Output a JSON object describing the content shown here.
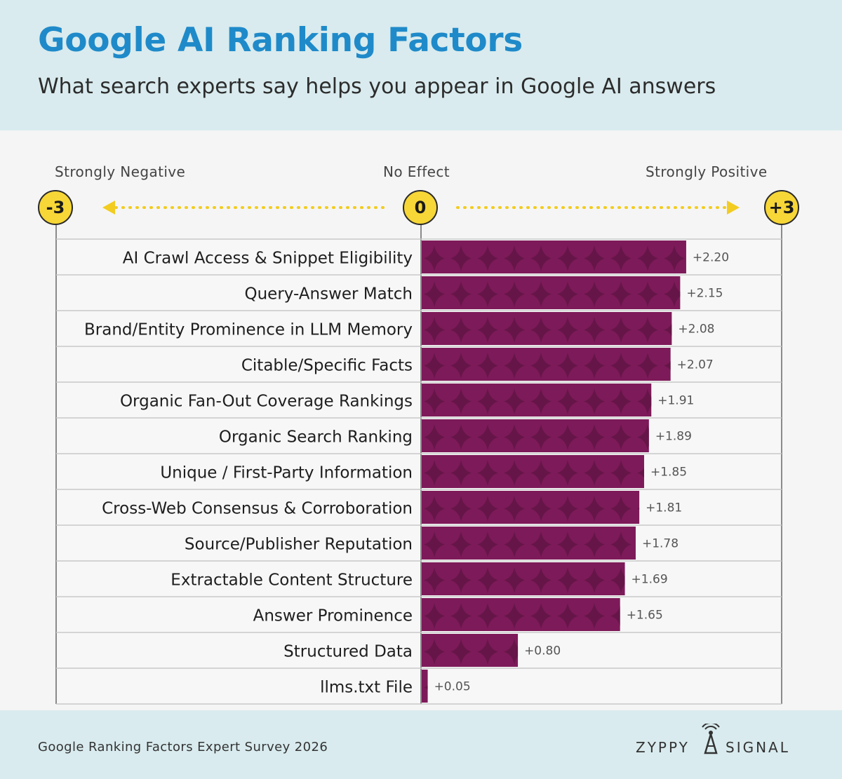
{
  "header": {
    "title": "Google AI Ranking Factors",
    "subtitle": "What search experts say helps you appear in Google AI answers"
  },
  "scale": {
    "left_label": "Strongly Negative",
    "center_label": "No Effect",
    "right_label": "Strongly Positive",
    "min_badge": "-3",
    "zero_badge": "0",
    "max_badge": "+3"
  },
  "footer": {
    "source": "Google Ranking Factors Expert Survey 2026",
    "brand_left": "ZYPPY",
    "brand_right": "SIGNAL"
  },
  "colors": {
    "title": "#1f8ac9",
    "bar": "#7d1a59",
    "badge": "#f7d637",
    "header_bg": "#d9ebee"
  },
  "chart_data": {
    "type": "bar",
    "orientation": "horizontal",
    "xlim": [
      -3,
      3
    ],
    "categories": [
      "AI Crawl Access & Snippet Eligibility",
      "Query-Answer Match",
      "Brand/Entity Prominence in LLM Memory",
      "Citable/Specific Facts",
      "Organic Fan-Out Coverage Rankings",
      "Organic Search Ranking",
      "Unique / First-Party Information",
      "Cross-Web Consensus & Corroboration",
      "Source/Publisher Reputation",
      "Extractable Content Structure",
      "Answer Prominence",
      "Structured Data",
      "llms.txt File"
    ],
    "values": [
      2.2,
      2.15,
      2.08,
      2.07,
      1.91,
      1.89,
      1.85,
      1.81,
      1.78,
      1.69,
      1.65,
      0.8,
      0.05
    ],
    "value_labels": [
      "+2.20",
      "+2.15",
      "+2.08",
      "+2.07",
      "+1.91",
      "+1.89",
      "+1.85",
      "+1.81",
      "+1.78",
      "+1.69",
      "+1.65",
      "+0.80",
      "+0.05"
    ]
  }
}
